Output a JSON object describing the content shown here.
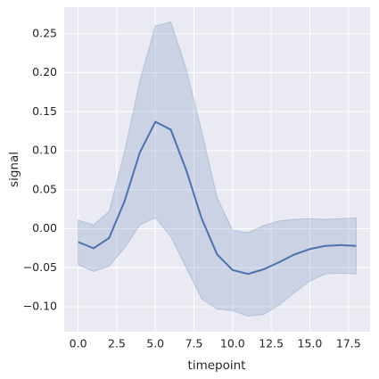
{
  "chart_data": {
    "type": "line",
    "x_label": "timepoint",
    "y_label": "signal",
    "x": [
      0,
      1,
      2,
      3,
      4,
      5,
      6,
      7,
      8,
      9,
      10,
      11,
      12,
      13,
      14,
      15,
      16,
      17,
      18
    ],
    "series": [
      {
        "color": "#4c72b0",
        "values": [
          -0.017,
          -0.025,
          -0.012,
          0.035,
          0.098,
          0.137,
          0.127,
          0.075,
          0.013,
          -0.033,
          -0.053,
          -0.058,
          -0.052,
          -0.043,
          -0.033,
          -0.026,
          -0.022,
          -0.021,
          -0.022
        ],
        "upper": [
          0.011,
          0.005,
          0.022,
          0.098,
          0.19,
          0.26,
          0.265,
          0.205,
          0.125,
          0.04,
          -0.002,
          -0.005,
          0.004,
          0.01,
          0.012,
          0.013,
          0.012,
          0.013,
          0.014
        ],
        "lower": [
          -0.046,
          -0.055,
          -0.048,
          -0.025,
          0.005,
          0.014,
          -0.01,
          -0.05,
          -0.09,
          -0.103,
          -0.105,
          -0.112,
          -0.11,
          -0.098,
          -0.082,
          -0.067,
          -0.058,
          -0.057,
          -0.058
        ]
      }
    ],
    "xlim": [
      -0.9,
      18.9
    ],
    "ylim": [
      -0.132,
      0.284
    ],
    "xticks": [
      {
        "value": 0,
        "label": "0.0"
      },
      2.5,
      {
        "value": 5,
        "label": "5.0"
      },
      7.5,
      {
        "value": 10,
        "label": "10.0"
      },
      12.5,
      {
        "value": 15,
        "label": "15.0"
      },
      17.5
    ],
    "yticks": [
      {
        "value": -0.1,
        "label": "−0.10"
      },
      {
        "value": -0.05,
        "label": "−0.05"
      },
      {
        "value": 0,
        "label": "0.00"
      },
      0.05,
      {
        "value": 0.1,
        "label": "0.10"
      },
      0.15,
      {
        "value": 0.2,
        "label": "0.20"
      },
      0.25
    ],
    "grid": true
  }
}
